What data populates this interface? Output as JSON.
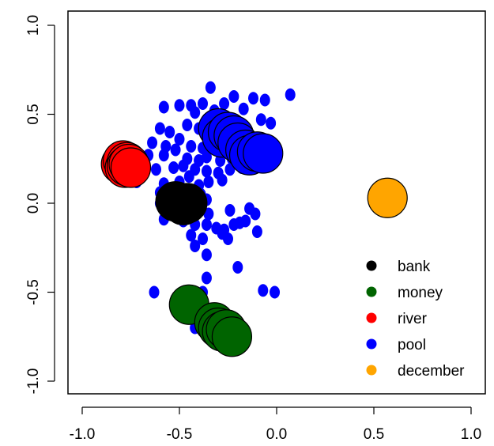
{
  "chart_data": {
    "type": "scatter",
    "title": "",
    "xlabel": "",
    "ylabel": "",
    "xlim": [
      -1.0,
      1.0
    ],
    "ylim": [
      -1.0,
      1.0
    ],
    "xticks": [
      -1.0,
      -0.5,
      0.0,
      0.5,
      1.0
    ],
    "xtick_labels": [
      "-1.0",
      "-0.5",
      "0.0",
      "0.5",
      "1.0"
    ],
    "yticks": [
      -1.0,
      -0.5,
      0.0,
      0.5,
      1.0
    ],
    "ytick_labels": [
      "-1.0",
      "-0.5",
      "0.0",
      "0.5",
      "1.0"
    ],
    "grid": false,
    "legend": {
      "position": "bottom-right",
      "entries": [
        {
          "label": "bank",
          "color": "#000000"
        },
        {
          "label": "money",
          "color": "#006400"
        },
        {
          "label": "river",
          "color": "#ff0000"
        },
        {
          "label": "pool",
          "color": "#0000ff"
        },
        {
          "label": "december",
          "color": "#ffa500"
        }
      ]
    },
    "series": [
      {
        "name": "pool",
        "color": "#0000ff",
        "marker": "small",
        "points": [
          [
            -0.34,
            0.65
          ],
          [
            -0.22,
            0.6
          ],
          [
            -0.12,
            0.59
          ],
          [
            -0.06,
            0.58
          ],
          [
            0.07,
            0.61
          ],
          [
            -0.58,
            0.54
          ],
          [
            -0.5,
            0.55
          ],
          [
            -0.44,
            0.55
          ],
          [
            -0.38,
            0.56
          ],
          [
            -0.32,
            0.52
          ],
          [
            -0.27,
            0.56
          ],
          [
            -0.17,
            0.53
          ],
          [
            -0.42,
            0.51
          ],
          [
            -0.36,
            0.47
          ],
          [
            -0.2,
            0.46
          ],
          [
            -0.08,
            0.47
          ],
          [
            -0.03,
            0.45
          ],
          [
            -0.6,
            0.42
          ],
          [
            -0.55,
            0.4
          ],
          [
            -0.46,
            0.44
          ],
          [
            -0.4,
            0.42
          ],
          [
            -0.34,
            0.38
          ],
          [
            -0.28,
            0.41
          ],
          [
            -0.22,
            0.36
          ],
          [
            -0.15,
            0.35
          ],
          [
            -0.64,
            0.34
          ],
          [
            -0.57,
            0.32
          ],
          [
            -0.5,
            0.36
          ],
          [
            -0.44,
            0.32
          ],
          [
            -0.38,
            0.31
          ],
          [
            -0.31,
            0.32
          ],
          [
            -0.25,
            0.29
          ],
          [
            -0.19,
            0.3
          ],
          [
            -0.12,
            0.31
          ],
          [
            -0.66,
            0.27
          ],
          [
            -0.58,
            0.27
          ],
          [
            -0.52,
            0.3
          ],
          [
            -0.46,
            0.25
          ],
          [
            -0.4,
            0.24
          ],
          [
            -0.36,
            0.26
          ],
          [
            -0.29,
            0.24
          ],
          [
            -0.23,
            0.25
          ],
          [
            -0.72,
            0.21
          ],
          [
            -0.62,
            0.19
          ],
          [
            -0.53,
            0.2
          ],
          [
            -0.48,
            0.21
          ],
          [
            -0.42,
            0.19
          ],
          [
            -0.36,
            0.18
          ],
          [
            -0.3,
            0.17
          ],
          [
            -0.24,
            0.19
          ],
          [
            -0.18,
            0.2
          ],
          [
            -0.72,
            0.12
          ],
          [
            -0.58,
            0.11
          ],
          [
            -0.5,
            0.12
          ],
          [
            -0.45,
            0.15
          ],
          [
            -0.4,
            0.1
          ],
          [
            -0.35,
            0.12
          ],
          [
            -0.28,
            0.13
          ],
          [
            -0.6,
            0.06
          ],
          [
            -0.54,
            0.07
          ],
          [
            -0.46,
            0.06
          ],
          [
            -0.39,
            0.05
          ],
          [
            -0.36,
            0.02
          ],
          [
            -0.6,
            0.0
          ],
          [
            -0.52,
            -0.01
          ],
          [
            -0.42,
            -0.04
          ],
          [
            -0.35,
            -0.06
          ],
          [
            -0.24,
            -0.04
          ],
          [
            -0.14,
            -0.03
          ],
          [
            -0.58,
            -0.09
          ],
          [
            -0.48,
            -0.1
          ],
          [
            -0.42,
            -0.12
          ],
          [
            -0.36,
            -0.12
          ],
          [
            -0.31,
            -0.14
          ],
          [
            -0.27,
            -0.15
          ],
          [
            -0.22,
            -0.12
          ],
          [
            -0.19,
            -0.11
          ],
          [
            -0.16,
            -0.1
          ],
          [
            -0.11,
            -0.06
          ],
          [
            -0.44,
            -0.18
          ],
          [
            -0.38,
            -0.2
          ],
          [
            -0.28,
            -0.17
          ],
          [
            -0.25,
            -0.2
          ],
          [
            -0.1,
            -0.16
          ],
          [
            -0.42,
            -0.24
          ],
          [
            -0.36,
            -0.29
          ],
          [
            -0.2,
            -0.36
          ],
          [
            -0.36,
            -0.42
          ],
          [
            -0.63,
            -0.5
          ],
          [
            -0.38,
            -0.5
          ],
          [
            -0.07,
            -0.49
          ],
          [
            -0.01,
            -0.5
          ],
          [
            -0.38,
            -0.58
          ],
          [
            -0.42,
            -0.7
          ]
        ]
      },
      {
        "name": "pool",
        "color": "#0000ff",
        "marker": "large",
        "points": [
          [
            -0.3,
            0.42
          ],
          [
            -0.28,
            0.37
          ],
          [
            -0.25,
            0.4
          ],
          [
            -0.22,
            0.38
          ],
          [
            -0.2,
            0.34
          ],
          [
            -0.16,
            0.3
          ],
          [
            -0.14,
            0.27
          ],
          [
            -0.1,
            0.29
          ],
          [
            -0.07,
            0.28
          ]
        ]
      },
      {
        "name": "river",
        "color": "#ff0000",
        "marker": "large",
        "points": [
          [
            -0.8,
            0.22
          ],
          [
            -0.79,
            0.24
          ],
          [
            -0.78,
            0.2
          ],
          [
            -0.77,
            0.23
          ],
          [
            -0.77,
            0.21
          ],
          [
            -0.76,
            0.22
          ],
          [
            -0.75,
            0.2
          ]
        ]
      },
      {
        "name": "bank",
        "color": "#000000",
        "marker": "large",
        "points": [
          [
            -0.52,
            0.01
          ],
          [
            -0.49,
            0.0
          ],
          [
            -0.48,
            -0.01
          ],
          [
            -0.46,
            0.0
          ]
        ]
      },
      {
        "name": "money",
        "color": "#006400",
        "marker": "large",
        "points": [
          [
            -0.45,
            -0.57
          ],
          [
            -0.32,
            -0.67
          ],
          [
            -0.3,
            -0.7
          ],
          [
            -0.28,
            -0.72
          ],
          [
            -0.26,
            -0.71
          ],
          [
            -0.23,
            -0.75
          ]
        ]
      },
      {
        "name": "december",
        "color": "#ffa500",
        "marker": "large",
        "points": [
          [
            0.57,
            0.03
          ]
        ]
      }
    ]
  }
}
